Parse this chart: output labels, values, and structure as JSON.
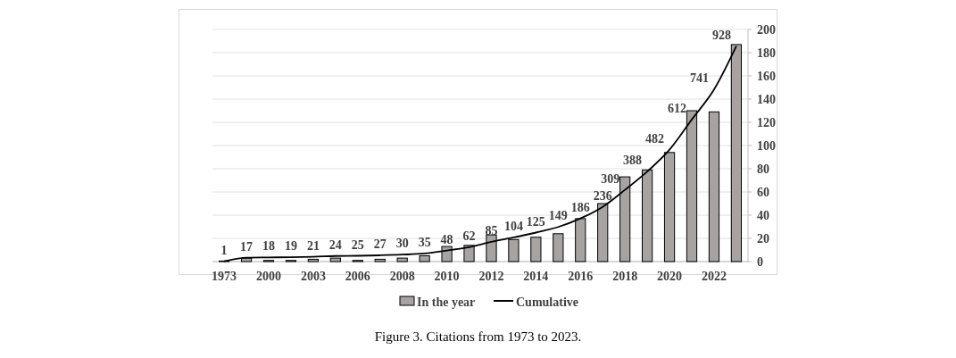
{
  "chart_data": {
    "type": "bar",
    "categories": [
      "1973",
      null,
      "2000",
      null,
      "2003",
      null,
      "2006",
      null,
      "2008",
      null,
      "2010",
      null,
      "2012",
      null,
      "2014",
      null,
      "2016",
      null,
      "2018",
      null,
      "2020",
      null,
      "2022",
      null
    ],
    "series": [
      {
        "name": "In the year",
        "color": "#a7a3a3",
        "values": [
          0.5,
          3,
          1,
          1,
          2,
          3,
          1,
          2,
          3,
          5,
          13,
          14,
          23,
          19,
          21,
          24,
          37,
          50,
          73,
          79,
          94,
          130,
          129,
          187
        ]
      },
      {
        "name": "Cumulative",
        "type": "line",
        "axis": "y2",
        "color": "#000000",
        "data_labels": true,
        "values": [
          1,
          17,
          18,
          19,
          21,
          24,
          25,
          27,
          30,
          35,
          48,
          62,
          85,
          104,
          125,
          149,
          186,
          236,
          309,
          388,
          482,
          612,
          741,
          928
        ]
      }
    ],
    "ylim": [
      0,
      200
    ],
    "yticks": [
      0,
      20,
      40,
      60,
      80,
      100,
      120,
      140,
      160,
      180,
      200
    ],
    "y2lim": [
      0,
      1000
    ],
    "grid": "y",
    "legend": "bottom",
    "marker": "none",
    "annotations": [
      "Figure 3. Citations from 1973 to 2023."
    ]
  }
}
